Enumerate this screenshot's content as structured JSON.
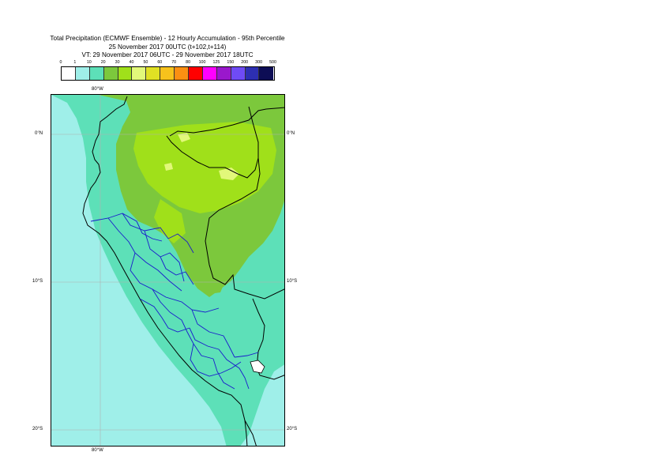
{
  "title": {
    "line1": "Total Precipitation (ECMWF Ensemble) - 12 Hourly Accumulation - 95th Percentile",
    "line2": "25 November 2017 00UTC (t+102,t+114)",
    "line3": "VT: 29 November 2017 06UTC - 29 November 2017 18UTC"
  },
  "legend": {
    "labels": [
      "0",
      "1",
      "10",
      "20",
      "30",
      "40",
      "50",
      "60",
      "70",
      "80",
      "100",
      "125",
      "150",
      "200",
      "300",
      "500"
    ],
    "colors": [
      "#ffffff",
      "#9fefe9",
      "#5de0b8",
      "#7cc83c",
      "#a0e01a",
      "#e2f87a",
      "#e0e024",
      "#f7c21c",
      "#fb8f12",
      "#ff0000",
      "#ff00ff",
      "#9a18cc",
      "#6f4bf5",
      "#2d2fb2",
      "#0d0d55"
    ]
  },
  "map": {
    "colors": {
      "light": "#9fefe9",
      "teal": "#5de0b8",
      "green": "#7cc83c",
      "lime": "#a0e01a",
      "yellow": "#e2f87a"
    },
    "labels": {
      "lon_top": "80°W",
      "lon_bottom": "80°W",
      "lat_0_left": "0°N",
      "lat_0_right": "0°N",
      "lat_10_left": "10°S",
      "lat_10_right": "10°S",
      "lat_20_left": "20°S",
      "lat_20_right": "20°S"
    }
  }
}
